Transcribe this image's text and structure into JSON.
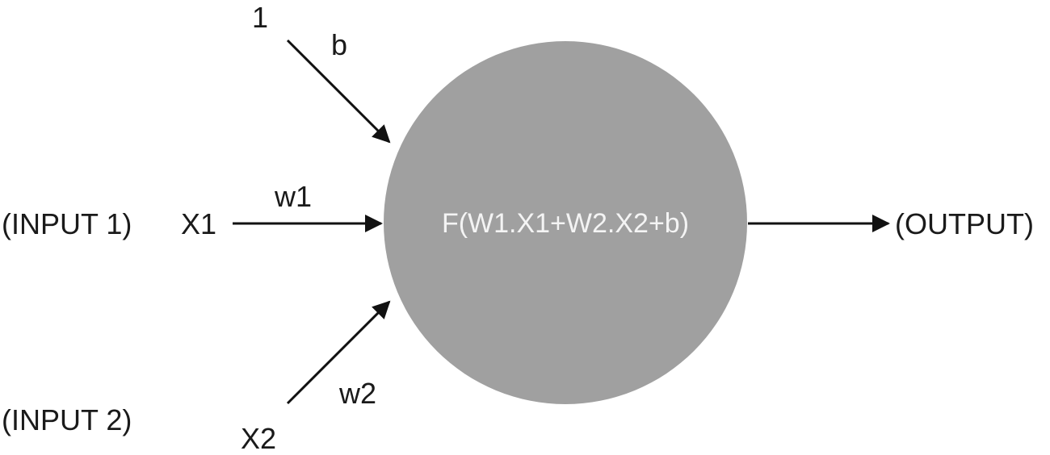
{
  "colors": {
    "neuron_fill": "#a0a0a0",
    "neuron_text": "#f4f4f4",
    "stroke": "#111111",
    "label": "#1a1a1a"
  },
  "bias": {
    "input_value": "1",
    "weight_label": "b"
  },
  "input1": {
    "caption": "(INPUT 1)",
    "variable": "X1",
    "weight_label": "w1"
  },
  "input2": {
    "caption": "(INPUT 2)",
    "variable": "X2",
    "weight_label": "w2"
  },
  "neuron": {
    "function_label": "F(W1.X1+W2.X2+b)"
  },
  "output": {
    "caption": "(OUTPUT)"
  }
}
